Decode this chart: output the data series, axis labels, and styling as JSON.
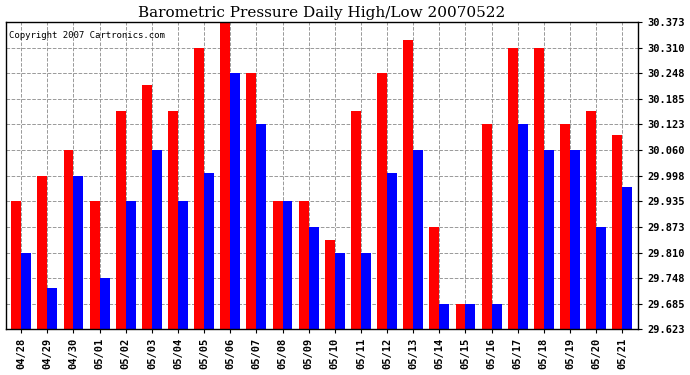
{
  "title": "Barometric Pressure Daily High/Low 20070522",
  "copyright": "Copyright 2007 Cartronics.com",
  "categories": [
    "04/28",
    "04/29",
    "04/30",
    "05/01",
    "05/02",
    "05/03",
    "05/04",
    "05/05",
    "05/06",
    "05/07",
    "05/08",
    "05/09",
    "05/10",
    "05/11",
    "05/12",
    "05/13",
    "05/14",
    "05/15",
    "05/16",
    "05/17",
    "05/18",
    "05/19",
    "05/20",
    "05/21"
  ],
  "highs": [
    29.935,
    29.998,
    30.06,
    29.935,
    30.155,
    30.22,
    30.155,
    30.31,
    30.373,
    30.248,
    29.935,
    29.935,
    29.84,
    30.155,
    30.248,
    30.33,
    29.873,
    29.685,
    30.123,
    30.31,
    30.31,
    30.123,
    30.155,
    30.098
  ],
  "lows": [
    29.81,
    29.723,
    29.998,
    29.748,
    29.935,
    30.06,
    29.935,
    30.005,
    30.248,
    30.123,
    29.935,
    29.873,
    29.81,
    29.81,
    30.005,
    30.06,
    29.685,
    29.685,
    29.685,
    30.123,
    30.06,
    30.06,
    29.873,
    29.97
  ],
  "high_color": "#ff0000",
  "low_color": "#0000ff",
  "background_color": "#ffffff",
  "grid_color": "#999999",
  "ylim_min": 29.623,
  "ylim_max": 30.373,
  "yticks": [
    29.623,
    29.685,
    29.748,
    29.81,
    29.873,
    29.935,
    29.998,
    30.06,
    30.123,
    30.185,
    30.248,
    30.31,
    30.373
  ],
  "bar_width": 0.38,
  "title_fontsize": 11,
  "tick_fontsize": 7.5,
  "copyright_fontsize": 6.5
}
